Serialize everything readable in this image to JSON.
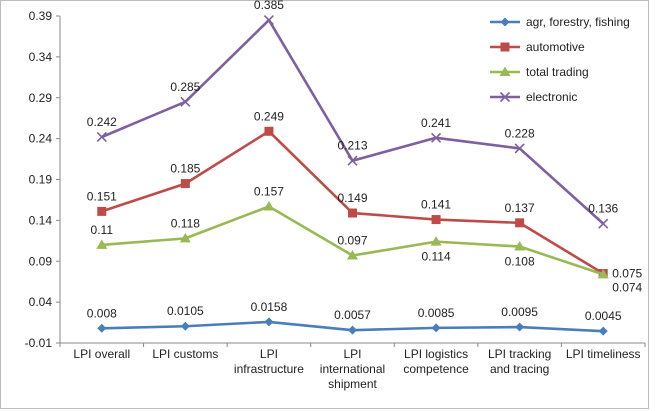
{
  "chart_data": {
    "type": "line",
    "categories": [
      [
        "LPI overall"
      ],
      [
        "LPI customs"
      ],
      [
        "LPI",
        "infrastructure"
      ],
      [
        "LPI",
        "international",
        "shipment"
      ],
      [
        "LPI logistics",
        "competence"
      ],
      [
        "LPI tracking",
        "and tracing"
      ],
      [
        "LPI timeliness"
      ]
    ],
    "yticks": [
      "-0.01",
      "0.04",
      "0.09",
      "0.14",
      "0.19",
      "0.24",
      "0.29",
      "0.34",
      "0.39"
    ],
    "ylim": [
      -0.01,
      0.39
    ],
    "grid": false,
    "legend_position": "top-right",
    "series": [
      {
        "name": "agr, forestry, fishing",
        "values": [
          0.008,
          0.0105,
          0.0158,
          0.0057,
          0.0085,
          0.0095,
          0.0045
        ],
        "labels": [
          "0.008",
          "0.0105",
          "0.0158",
          "0.0057",
          "0.0085",
          "0.0095",
          "0.0045"
        ],
        "color": "#4a7ebb",
        "marker": "diamond"
      },
      {
        "name": "automotive",
        "values": [
          0.151,
          0.185,
          0.249,
          0.149,
          0.141,
          0.137,
          0.075
        ],
        "labels": [
          "0.151",
          "0.185",
          "0.249",
          "0.149",
          "0.141",
          "0.137",
          "0.075"
        ],
        "color": "#be4b48",
        "marker": "square"
      },
      {
        "name": "total trading",
        "values": [
          0.11,
          0.118,
          0.157,
          0.097,
          0.114,
          0.108,
          0.074
        ],
        "labels": [
          "0.11",
          "0.118",
          "0.157",
          "0.097",
          "0.114",
          "0.108",
          "0.074"
        ],
        "color": "#98b954",
        "marker": "triangle"
      },
      {
        "name": "electronic",
        "values": [
          0.242,
          0.285,
          0.385,
          0.213,
          0.241,
          0.228,
          0.136
        ],
        "labels": [
          "0.242",
          "0.285",
          "0.385",
          "0.213",
          "0.241",
          "0.228",
          "0.136"
        ],
        "color": "#7d60a0",
        "marker": "x"
      }
    ]
  }
}
